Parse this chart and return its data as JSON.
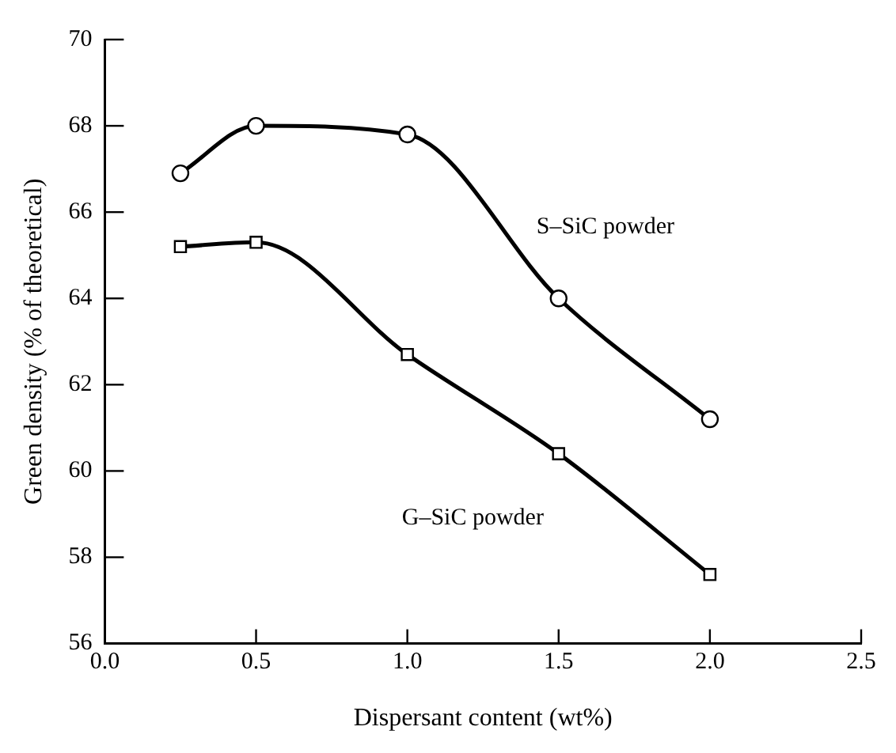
{
  "chart_data": {
    "type": "line",
    "xlabel": "Dispersant content (wt%)",
    "ylabel": "Green density (% of theoretical)",
    "x": [
      0.25,
      0.5,
      1.0,
      1.5,
      2.0
    ],
    "series": [
      {
        "name": "S–SiC powder",
        "color": "#000000",
        "marker": "circle",
        "values": [
          66.9,
          68.0,
          67.8,
          64.0,
          61.2
        ]
      },
      {
        "name": "G–SiC powder",
        "color": "#000000",
        "marker": "square",
        "values": [
          65.2,
          65.3,
          62.7,
          60.4,
          57.6
        ]
      }
    ],
    "xlim": [
      0,
      2.5
    ],
    "xticks": [
      {
        "value": 0,
        "label": "0.0"
      },
      0.5,
      {
        "value": 1,
        "label": "1.0"
      },
      1.5,
      {
        "value": 2,
        "label": "2.0"
      },
      2.5
    ],
    "ylim": [
      56,
      70
    ],
    "yticks": [
      56,
      58,
      60,
      62,
      64,
      66,
      68,
      70
    ],
    "grid": false,
    "legend": false,
    "line_style": "solid"
  }
}
